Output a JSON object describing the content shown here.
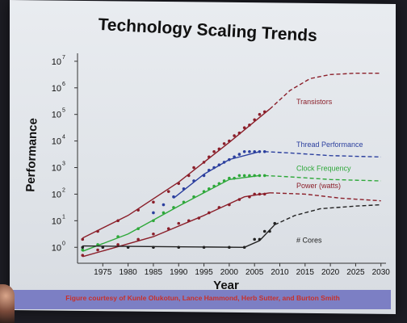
{
  "title": "Technology Scaling Trends",
  "credit": "Figure courtesy of Kunle Olukotun, Lance Hammond, Herb Sutter, and Burton Smith",
  "chart_data": {
    "type": "scatter",
    "title": "Technology Scaling Trends",
    "xlabel": "Year",
    "ylabel": "Performance",
    "xlim": [
      1970,
      2031
    ],
    "ylim_exponent": [
      -0.6,
      7.3
    ],
    "log_scale_y": true,
    "x_ticks": [
      "1975",
      "1980",
      "1985",
      "1990",
      "1995",
      "2000",
      "2005",
      "2010",
      "2015",
      "2020",
      "2025",
      "2030"
    ],
    "x_tick_values": [
      1975,
      1980,
      1985,
      1990,
      1995,
      2000,
      2005,
      2010,
      2015,
      2020,
      2025,
      2030
    ],
    "y_ticks": [
      "10",
      "10",
      "10",
      "10",
      "10",
      "10",
      "10",
      "10"
    ],
    "y_tick_exponents": [
      "0",
      "1",
      "2",
      "3",
      "4",
      "5",
      "6",
      "7"
    ],
    "y_tick_values": [
      0,
      1,
      2,
      3,
      4,
      5,
      6,
      7
    ],
    "series": [
      {
        "name": "Transistors",
        "color": "#8b1f2a",
        "points": [
          [
            1971,
            0.3
          ],
          [
            1974,
            0.6
          ],
          [
            1978,
            1.0
          ],
          [
            1982,
            1.4
          ],
          [
            1985,
            1.7
          ],
          [
            1988,
            2.1
          ],
          [
            1990,
            2.4
          ],
          [
            1992,
            2.7
          ],
          [
            1993,
            3.0
          ],
          [
            1995,
            3.2
          ],
          [
            1996,
            3.4
          ],
          [
            1997,
            3.6
          ],
          [
            1998,
            3.7
          ],
          [
            1999,
            3.9
          ],
          [
            2000,
            4.0
          ],
          [
            2001,
            4.2
          ],
          [
            2002,
            4.3
          ],
          [
            2003,
            4.5
          ],
          [
            2004,
            4.6
          ],
          [
            2005,
            4.8
          ],
          [
            2006,
            5.0
          ],
          [
            2007,
            5.1
          ]
        ],
        "trend": [
          [
            1971,
            0.35
          ],
          [
            1980,
            1.2
          ],
          [
            1990,
            2.45
          ],
          [
            2000,
            3.95
          ],
          [
            2008,
            5.2
          ]
        ],
        "projection": [
          [
            2008,
            5.2
          ],
          [
            2012,
            5.9
          ],
          [
            2016,
            6.35
          ],
          [
            2020,
            6.5
          ],
          [
            2025,
            6.55
          ],
          [
            2030,
            6.55
          ]
        ]
      },
      {
        "name": "Thread Performance",
        "color": "#2b3f9e",
        "points": [
          [
            1985,
            1.3
          ],
          [
            1987,
            1.6
          ],
          [
            1989,
            1.9
          ],
          [
            1991,
            2.2
          ],
          [
            1993,
            2.5
          ],
          [
            1995,
            2.7
          ],
          [
            1996,
            2.9
          ],
          [
            1997,
            3.0
          ],
          [
            1998,
            3.1
          ],
          [
            1999,
            3.2
          ],
          [
            2000,
            3.3
          ],
          [
            2001,
            3.4
          ],
          [
            2002,
            3.5
          ],
          [
            2003,
            3.6
          ],
          [
            2004,
            3.6
          ],
          [
            2005,
            3.6
          ],
          [
            2006,
            3.6
          ],
          [
            2007,
            3.6
          ]
        ],
        "trend": [
          [
            1989,
            1.85
          ],
          [
            1995,
            2.75
          ],
          [
            2000,
            3.3
          ],
          [
            2006,
            3.6
          ]
        ],
        "projection": [
          [
            2007,
            3.6
          ],
          [
            2012,
            3.55
          ],
          [
            2020,
            3.45
          ],
          [
            2030,
            3.4
          ]
        ]
      },
      {
        "name": "Clock Frequency",
        "color": "#2ea83a",
        "points": [
          [
            1971,
            -0.1
          ],
          [
            1974,
            0.1
          ],
          [
            1978,
            0.4
          ],
          [
            1982,
            0.7
          ],
          [
            1985,
            1.0
          ],
          [
            1987,
            1.3
          ],
          [
            1989,
            1.5
          ],
          [
            1991,
            1.7
          ],
          [
            1993,
            1.9
          ],
          [
            1995,
            2.1
          ],
          [
            1996,
            2.2
          ],
          [
            1997,
            2.3
          ],
          [
            1998,
            2.4
          ],
          [
            1999,
            2.5
          ],
          [
            2000,
            2.6
          ],
          [
            2001,
            2.6
          ],
          [
            2002,
            2.7
          ],
          [
            2003,
            2.7
          ],
          [
            2004,
            2.7
          ],
          [
            2005,
            2.7
          ],
          [
            2006,
            2.7
          ],
          [
            2007,
            2.7
          ]
        ],
        "trend": [
          [
            1971,
            -0.15
          ],
          [
            1980,
            0.5
          ],
          [
            1990,
            1.55
          ],
          [
            2000,
            2.55
          ],
          [
            2006,
            2.7
          ]
        ],
        "projection": [
          [
            2007,
            2.7
          ],
          [
            2012,
            2.65
          ],
          [
            2020,
            2.55
          ],
          [
            2030,
            2.5
          ]
        ]
      },
      {
        "name": "Power (watts)",
        "color": "#8b1f2a",
        "points": [
          [
            1971,
            -0.3
          ],
          [
            1974,
            -0.1
          ],
          [
            1978,
            0.1
          ],
          [
            1982,
            0.3
          ],
          [
            1985,
            0.5
          ],
          [
            1988,
            0.7
          ],
          [
            1990,
            0.9
          ],
          [
            1992,
            1.0
          ],
          [
            1994,
            1.1
          ],
          [
            1996,
            1.3
          ],
          [
            1998,
            1.5
          ],
          [
            2000,
            1.6
          ],
          [
            2002,
            1.8
          ],
          [
            2004,
            1.9
          ],
          [
            2005,
            2.0
          ],
          [
            2006,
            2.0
          ],
          [
            2007,
            2.0
          ]
        ],
        "trend": [
          [
            1971,
            -0.35
          ],
          [
            1985,
            0.4
          ],
          [
            1995,
            1.2
          ],
          [
            2003,
            1.9
          ],
          [
            2008,
            2.05
          ]
        ],
        "projection": [
          [
            2008,
            2.05
          ],
          [
            2015,
            2.0
          ],
          [
            2022,
            1.85
          ],
          [
            2030,
            1.75
          ]
        ]
      },
      {
        "name": "# Cores",
        "color": "#222222",
        "points": [
          [
            1971,
            0.0
          ],
          [
            1975,
            0.0
          ],
          [
            1980,
            0.0
          ],
          [
            1985,
            0.0
          ],
          [
            1990,
            0.0
          ],
          [
            1995,
            0.0
          ],
          [
            2000,
            0.0
          ],
          [
            2003,
            0.0
          ],
          [
            2005,
            0.3
          ],
          [
            2006,
            0.3
          ],
          [
            2007,
            0.6
          ],
          [
            2008,
            0.6
          ],
          [
            2009,
            0.9
          ]
        ],
        "trend": [
          [
            1971,
            0.05
          ],
          [
            2003,
            0.0
          ],
          [
            2006,
            0.25
          ],
          [
            2009,
            0.85
          ]
        ],
        "projection": [
          [
            2009,
            0.85
          ],
          [
            2013,
            1.2
          ],
          [
            2018,
            1.45
          ],
          [
            2025,
            1.55
          ],
          [
            2030,
            1.6
          ]
        ]
      }
    ]
  }
}
